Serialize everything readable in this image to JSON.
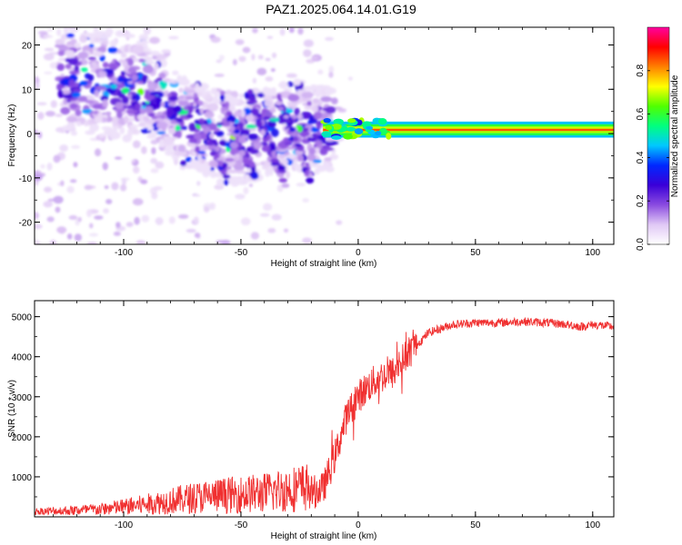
{
  "title": "PAZ1.2025.064.14.01.G19",
  "chart_data": [
    {
      "type": "heatmap",
      "xlabel": "Height of straight line (km)",
      "ylabel": "Frequency (Hz)",
      "xlim": [
        -138,
        109
      ],
      "ylim": [
        -25,
        24
      ],
      "x_ticks": [
        -100,
        -50,
        0,
        50,
        100
      ],
      "y_ticks": [
        -20,
        -10,
        0,
        10,
        20
      ],
      "colorbar": {
        "label": "Normalized spectral amplitude",
        "range": [
          0,
          1
        ],
        "ticks": [
          0.0,
          0.2,
          0.4,
          0.6,
          0.8
        ],
        "colormap": [
          "#ffffff",
          "#e0c8f5",
          "#8a4be0",
          "#3a00d8",
          "#0028ff",
          "#00c8ff",
          "#00ff80",
          "#50ff00",
          "#ffff00",
          "#ff8000",
          "#ff0000",
          "#ff00a0"
        ]
      },
      "features": {
        "carrier_line_freq_hz": 1,
        "carrier_start_km": -15,
        "carrier_amplitude": 0.85,
        "diagonal_trend": [
          {
            "x": -120,
            "y": 12
          },
          {
            "x": -90,
            "y": 10
          },
          {
            "x": -75,
            "y": 3
          },
          {
            "x": -55,
            "y": -2
          },
          {
            "x": -30,
            "y": 2
          },
          {
            "x": -15,
            "y": 1
          }
        ]
      }
    },
    {
      "type": "line",
      "xlabel": "Height of straight line (km)",
      "ylabel": "SNR (10 * v/v)",
      "xlim": [
        -138,
        109
      ],
      "ylim": [
        0,
        5400
      ],
      "x_ticks": [
        -100,
        -50,
        0,
        50,
        100
      ],
      "y_ticks": [
        1000,
        2000,
        3000,
        4000,
        5000
      ],
      "color": "#f03030",
      "series": [
        {
          "x": [
            -138,
            -125,
            -110,
            -100,
            -90,
            -80,
            -70,
            -60,
            -50,
            -40,
            -30,
            -20,
            -15,
            -10,
            -5,
            0,
            5,
            10,
            15,
            20,
            25,
            30,
            40,
            50,
            60,
            70,
            80,
            90,
            95,
            100,
            109
          ],
          "y": [
            100,
            120,
            150,
            200,
            250,
            320,
            380,
            420,
            450,
            480,
            550,
            600,
            700,
            1500,
            2500,
            3000,
            3300,
            3500,
            3600,
            4000,
            4300,
            4600,
            4800,
            4850,
            4850,
            4880,
            4850,
            4800,
            4750,
            4800,
            4750
          ]
        }
      ]
    }
  ]
}
